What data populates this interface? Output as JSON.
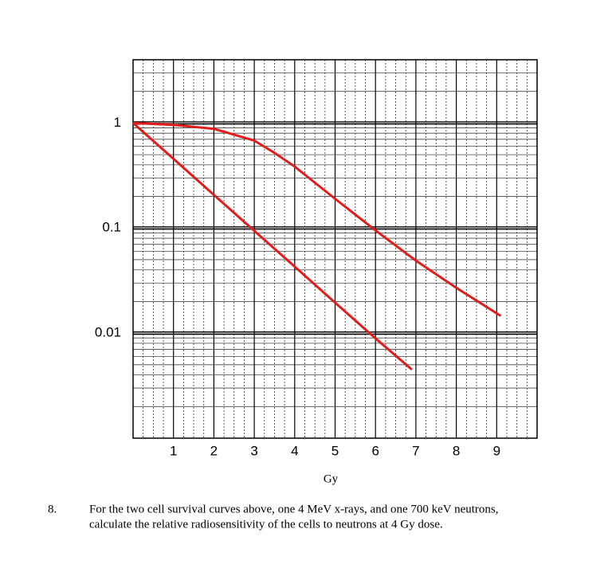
{
  "chart_data": {
    "type": "line",
    "xlabel": "Gy",
    "ylog": true,
    "grid": true,
    "xlim": [
      0,
      10
    ],
    "xticks": [
      1,
      2,
      3,
      4,
      5,
      6,
      7,
      8,
      9
    ],
    "ylim": [
      0.001,
      4
    ],
    "yticks": [
      1,
      0.1,
      0.01
    ],
    "series": [
      {
        "color": "#e21b1b",
        "x": [
          0,
          1,
          2,
          3,
          3.5,
          4,
          5,
          6,
          7,
          8,
          9.1
        ],
        "values": [
          1,
          0.96,
          0.88,
          0.68,
          0.52,
          0.385,
          0.19,
          0.095,
          0.049,
          0.027,
          0.0146
        ]
      },
      {
        "color": "#e21b1b",
        "x": [
          0,
          1,
          2,
          3,
          4,
          5,
          6,
          6.9
        ],
        "values": [
          1,
          0.456,
          0.207,
          0.094,
          0.043,
          0.0195,
          0.0089,
          0.0045
        ]
      }
    ]
  },
  "question": {
    "number": "8.",
    "lines": [
      "For the two cell survival curves above, one 4 MeV x-rays, and one 700 keV neutrons,",
      "calculate the relative radiosensitivity of the cells to neutrons at 4 Gy dose."
    ]
  }
}
